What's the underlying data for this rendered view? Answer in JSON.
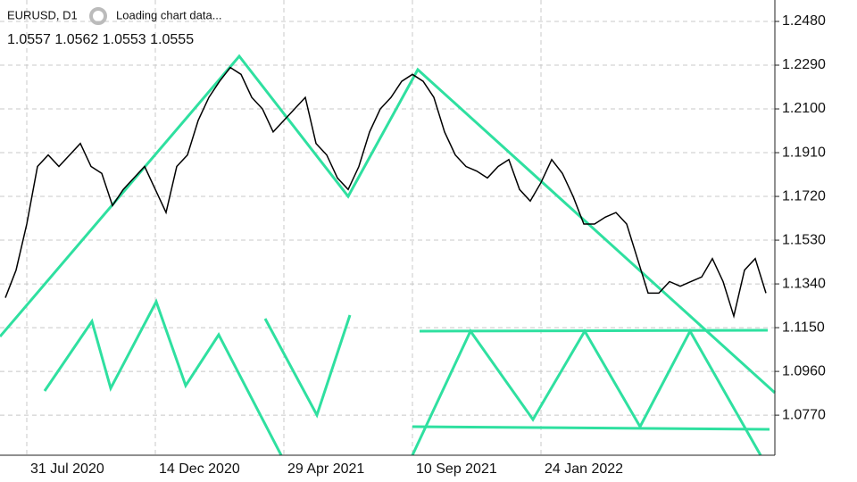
{
  "chart_data": {
    "type": "line",
    "symbol": "EURUSD, D1",
    "status": "Loading chart data...",
    "quote": "1.0557 1.0562 1.0553 1.0555",
    "color": "#000000",
    "grid": true,
    "categories": [
      null,
      null,
      "31 Jul 2020",
      null,
      null,
      null,
      null,
      null,
      null,
      null,
      null,
      null,
      null,
      null,
      "14 Dec 2020",
      null,
      null,
      null,
      null,
      null,
      null,
      null,
      null,
      null,
      null,
      null,
      "29 Apr 2021",
      null,
      null,
      null,
      null,
      null,
      null,
      null,
      null,
      null,
      null,
      null,
      "10 Sep 2021",
      null,
      null,
      null,
      null,
      null,
      null,
      null,
      null,
      null,
      null,
      null,
      "24 Jan 2022",
      null,
      null,
      null,
      null,
      null,
      null,
      null,
      null,
      null,
      null,
      null,
      null,
      null,
      null,
      null,
      null,
      null,
      null,
      null,
      null,
      null
    ],
    "values": [
      1.128,
      1.14,
      1.16,
      1.185,
      1.19,
      1.185,
      1.19,
      1.195,
      1.185,
      1.182,
      1.168,
      1.175,
      1.18,
      1.185,
      1.175,
      1.165,
      1.185,
      1.19,
      1.205,
      1.215,
      1.222,
      1.228,
      1.225,
      1.215,
      1.21,
      1.2,
      1.205,
      1.21,
      1.215,
      1.195,
      1.19,
      1.18,
      1.175,
      1.185,
      1.2,
      1.21,
      1.215,
      1.222,
      1.225,
      1.222,
      1.215,
      1.2,
      1.19,
      1.185,
      1.183,
      1.18,
      1.185,
      1.188,
      1.175,
      1.17,
      1.178,
      1.188,
      1.182,
      1.172,
      1.16,
      1.16,
      1.163,
      1.165,
      1.16,
      1.145,
      1.13,
      1.13,
      1.135,
      1.133,
      1.135,
      1.137,
      1.145,
      1.135,
      1.12,
      1.14,
      1.145,
      1.13
    ],
    "ylim": [
      1.0596,
      1.2573
    ],
    "yticks": [
      {
        "value": 1.248,
        "label": "1.2480"
      },
      {
        "value": 1.229,
        "label": "1.2290"
      },
      {
        "value": 1.21,
        "label": "1.2100"
      },
      {
        "value": 1.191,
        "label": "1.1910"
      },
      {
        "value": 1.172,
        "label": "1.1720"
      },
      {
        "value": 1.153,
        "label": "1.1530"
      },
      {
        "value": 1.134,
        "label": "1.1340"
      },
      {
        "value": 1.115,
        "label": "1.1150"
      },
      {
        "value": 1.096,
        "label": "1.0960"
      },
      {
        "value": 1.077,
        "label": "1.0770"
      }
    ]
  }
}
